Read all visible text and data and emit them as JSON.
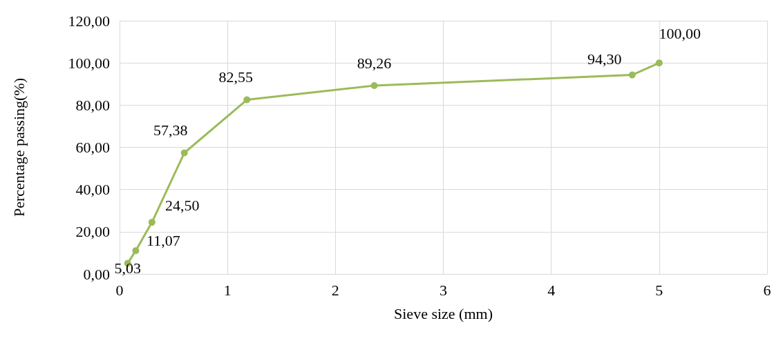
{
  "chart_data": {
    "type": "line",
    "xlabel": "Sieve size (mm)",
    "ylabel": "Percentage passing(%)",
    "series": [
      {
        "x": [
          0.075,
          0.15,
          0.3,
          0.6,
          1.18,
          2.36,
          4.75,
          5
        ],
        "values": [
          5.03,
          11.07,
          24.5,
          57.38,
          82.55,
          89.26,
          94.3,
          100
        ],
        "color": "#9bbb59",
        "value_labels": [
          "5,03",
          "11,07",
          "24,50",
          "57,38",
          "82,55",
          "89,26",
          "94,30",
          "100,00"
        ]
      }
    ],
    "xlim": [
      0,
      6
    ],
    "xticks": [
      0,
      1,
      2,
      3,
      4,
      5,
      6
    ],
    "ylim": [
      0,
      120
    ],
    "yticks": [
      {
        "value": 0,
        "label": "0,00"
      },
      {
        "value": 20,
        "label": "20,00"
      },
      {
        "value": 40,
        "label": "40,00"
      },
      {
        "value": 60,
        "label": "60,00"
      },
      {
        "value": 80,
        "label": "80,00"
      },
      {
        "value": 100,
        "label": "100,00"
      },
      {
        "value": 120,
        "label": "120,00"
      }
    ],
    "grid": true,
    "marker": "circle",
    "line_style": "solid"
  }
}
